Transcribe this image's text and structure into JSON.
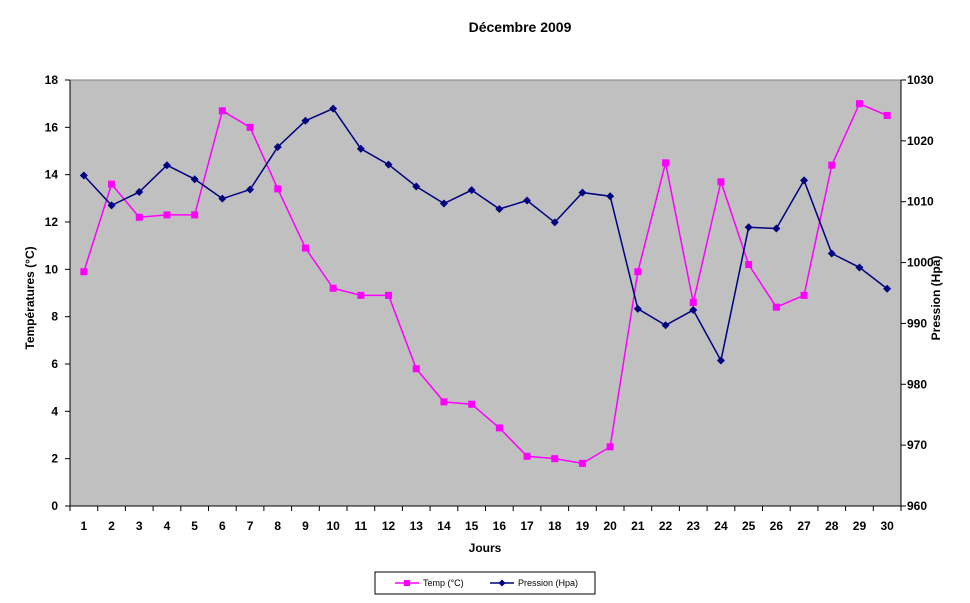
{
  "chart_data": {
    "type": "line",
    "title": "Décembre 2009",
    "xlabel": "Jours",
    "ylabel_left": "Températures (°C)",
    "ylabel_right": "Pression (Hpa)",
    "categories": [
      "1",
      "2",
      "3",
      "4",
      "5",
      "6",
      "7",
      "8",
      "9",
      "10",
      "11",
      "12",
      "13",
      "14",
      "15",
      "16",
      "17",
      "18",
      "19",
      "20",
      "21",
      "22",
      "23",
      "24",
      "25",
      "26",
      "27",
      "28",
      "29",
      "30"
    ],
    "ylim_left": [
      0,
      18
    ],
    "yticks_left": [
      "0",
      "2",
      "4",
      "6",
      "8",
      "10",
      "12",
      "14",
      "16",
      "18"
    ],
    "ylim_right": [
      960,
      1030
    ],
    "yticks_right": [
      "960",
      "970",
      "980",
      "990",
      "1000",
      "1010",
      "1020",
      "1030"
    ],
    "plot_background": "#c0c0c0",
    "grid": false,
    "legend_position": "bottom-center",
    "series": [
      {
        "name": "Temp (°C)",
        "axis": "left",
        "color": "#ff00ff",
        "marker": "square",
        "values": [
          9.9,
          13.6,
          12.2,
          12.3,
          12.3,
          16.7,
          16.0,
          13.4,
          10.9,
          9.2,
          8.9,
          8.9,
          5.8,
          4.4,
          4.3,
          3.3,
          2.1,
          2.0,
          1.8,
          2.5,
          9.9,
          14.5,
          8.6,
          13.7,
          10.2,
          8.4,
          8.9,
          14.4,
          17.0,
          16.5
        ]
      },
      {
        "name": "Pression (Hpa)",
        "axis": "right",
        "color": "#000080",
        "marker": "diamond",
        "values": [
          1014.3,
          1009.4,
          1011.6,
          1016.0,
          1013.7,
          1010.5,
          1012.0,
          1019.0,
          1023.3,
          1025.3,
          1018.7,
          1016.1,
          1012.5,
          1009.7,
          1011.9,
          1008.8,
          1010.2,
          1006.6,
          1011.5,
          1010.9,
          992.4,
          989.7,
          992.2,
          983.9,
          1005.8,
          1005.6,
          1013.5,
          1001.5,
          999.2,
          995.7
        ]
      }
    ]
  }
}
